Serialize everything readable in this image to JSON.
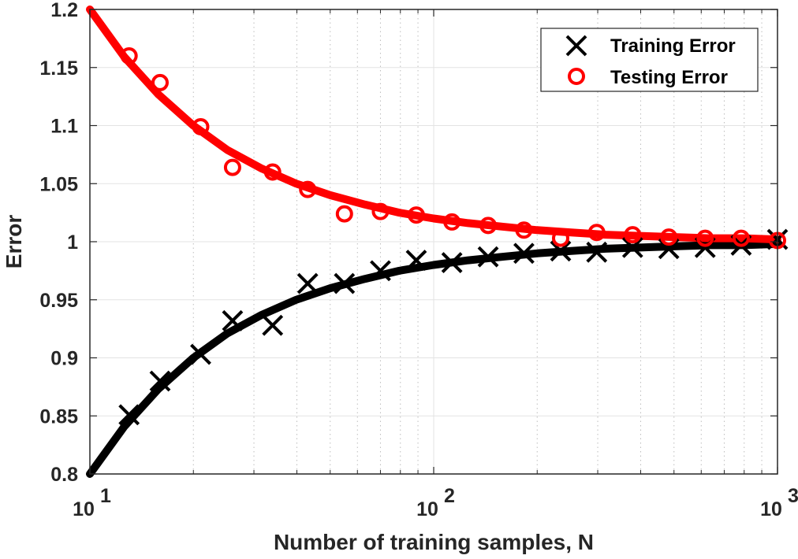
{
  "chart_data": {
    "type": "scatter",
    "title": "",
    "xlabel": "Number of training samples, N",
    "ylabel": "Error",
    "xscale": "log",
    "xlim": [
      10,
      1000
    ],
    "ylim": [
      0.8,
      1.2
    ],
    "x_ticks": [
      10,
      100,
      1000
    ],
    "x_tick_labels": [
      {
        "base": "10",
        "exp": "1"
      },
      {
        "base": "10",
        "exp": "2"
      },
      {
        "base": "10",
        "exp": "3"
      }
    ],
    "y_ticks": [
      0.8,
      0.85,
      0.9,
      0.95,
      1.0,
      1.05,
      1.1,
      1.15,
      1.2
    ],
    "y_tick_labels": [
      "0.8",
      "0.85",
      "0.9",
      "0.95",
      "1",
      "1.05",
      "1.1",
      "1.15",
      "1.2"
    ],
    "grid": true,
    "legend_position": "top-right",
    "legend": [
      {
        "label": "Training Error",
        "marker": "x",
        "color": "#000000"
      },
      {
        "label": "Testing Error",
        "marker": "o",
        "color": "#ff0000"
      }
    ],
    "series": [
      {
        "name": "Training Error",
        "marker": "x",
        "color": "#000000",
        "points": [
          [
            13,
            0.851
          ],
          [
            16,
            0.88
          ],
          [
            21,
            0.903
          ],
          [
            26,
            0.932
          ],
          [
            34,
            0.928
          ],
          [
            43,
            0.964
          ],
          [
            55,
            0.964
          ],
          [
            70,
            0.975
          ],
          [
            89,
            0.984
          ],
          [
            113,
            0.982
          ],
          [
            144,
            0.987
          ],
          [
            183,
            0.99
          ],
          [
            234,
            0.992
          ],
          [
            298,
            0.991
          ],
          [
            379,
            0.995
          ],
          [
            483,
            0.994
          ],
          [
            616,
            0.995
          ],
          [
            784,
            0.997
          ],
          [
            1000,
            1.002
          ]
        ]
      },
      {
        "name": "Testing Error",
        "marker": "o",
        "color": "#ff0000",
        "points": [
          [
            13,
            1.16
          ],
          [
            16,
            1.137
          ],
          [
            21,
            1.099
          ],
          [
            26,
            1.064
          ],
          [
            34,
            1.06
          ],
          [
            43,
            1.045
          ],
          [
            55,
            1.024
          ],
          [
            70,
            1.026
          ],
          [
            89,
            1.023
          ],
          [
            113,
            1.017
          ],
          [
            144,
            1.014
          ],
          [
            183,
            1.01
          ],
          [
            234,
            1.003
          ],
          [
            298,
            1.008
          ],
          [
            379,
            1.006
          ],
          [
            483,
            1.004
          ],
          [
            616,
            1.003
          ],
          [
            784,
            1.003
          ],
          [
            1000,
            1.001
          ]
        ]
      },
      {
        "name": "Training fit",
        "style": "line",
        "color": "#000000",
        "points": [
          [
            10,
            0.8
          ],
          [
            12.6,
            0.841
          ],
          [
            15.8,
            0.873
          ],
          [
            20,
            0.9
          ],
          [
            25.1,
            0.921
          ],
          [
            31.6,
            0.937
          ],
          [
            39.8,
            0.95
          ],
          [
            50.1,
            0.96
          ],
          [
            63.1,
            0.968
          ],
          [
            79.4,
            0.975
          ],
          [
            100,
            0.98
          ],
          [
            126,
            0.984
          ],
          [
            158,
            0.987
          ],
          [
            200,
            0.99
          ],
          [
            251,
            0.992
          ],
          [
            316,
            0.994
          ],
          [
            398,
            0.995
          ],
          [
            501,
            0.996
          ],
          [
            631,
            0.997
          ],
          [
            794,
            0.997
          ],
          [
            1000,
            0.998
          ]
        ]
      },
      {
        "name": "Testing fit",
        "style": "line",
        "color": "#ff0000",
        "points": [
          [
            10,
            1.2
          ],
          [
            12.6,
            1.159
          ],
          [
            15.8,
            1.127
          ],
          [
            20,
            1.1
          ],
          [
            25.1,
            1.079
          ],
          [
            31.6,
            1.063
          ],
          [
            39.8,
            1.05
          ],
          [
            50.1,
            1.04
          ],
          [
            63.1,
            1.032
          ],
          [
            79.4,
            1.025
          ],
          [
            100,
            1.02
          ],
          [
            126,
            1.016
          ],
          [
            158,
            1.013
          ],
          [
            200,
            1.01
          ],
          [
            251,
            1.008
          ],
          [
            316,
            1.006
          ],
          [
            398,
            1.005
          ],
          [
            501,
            1.004
          ],
          [
            631,
            1.003
          ],
          [
            794,
            1.003
          ],
          [
            1000,
            1.002
          ]
        ]
      }
    ]
  }
}
